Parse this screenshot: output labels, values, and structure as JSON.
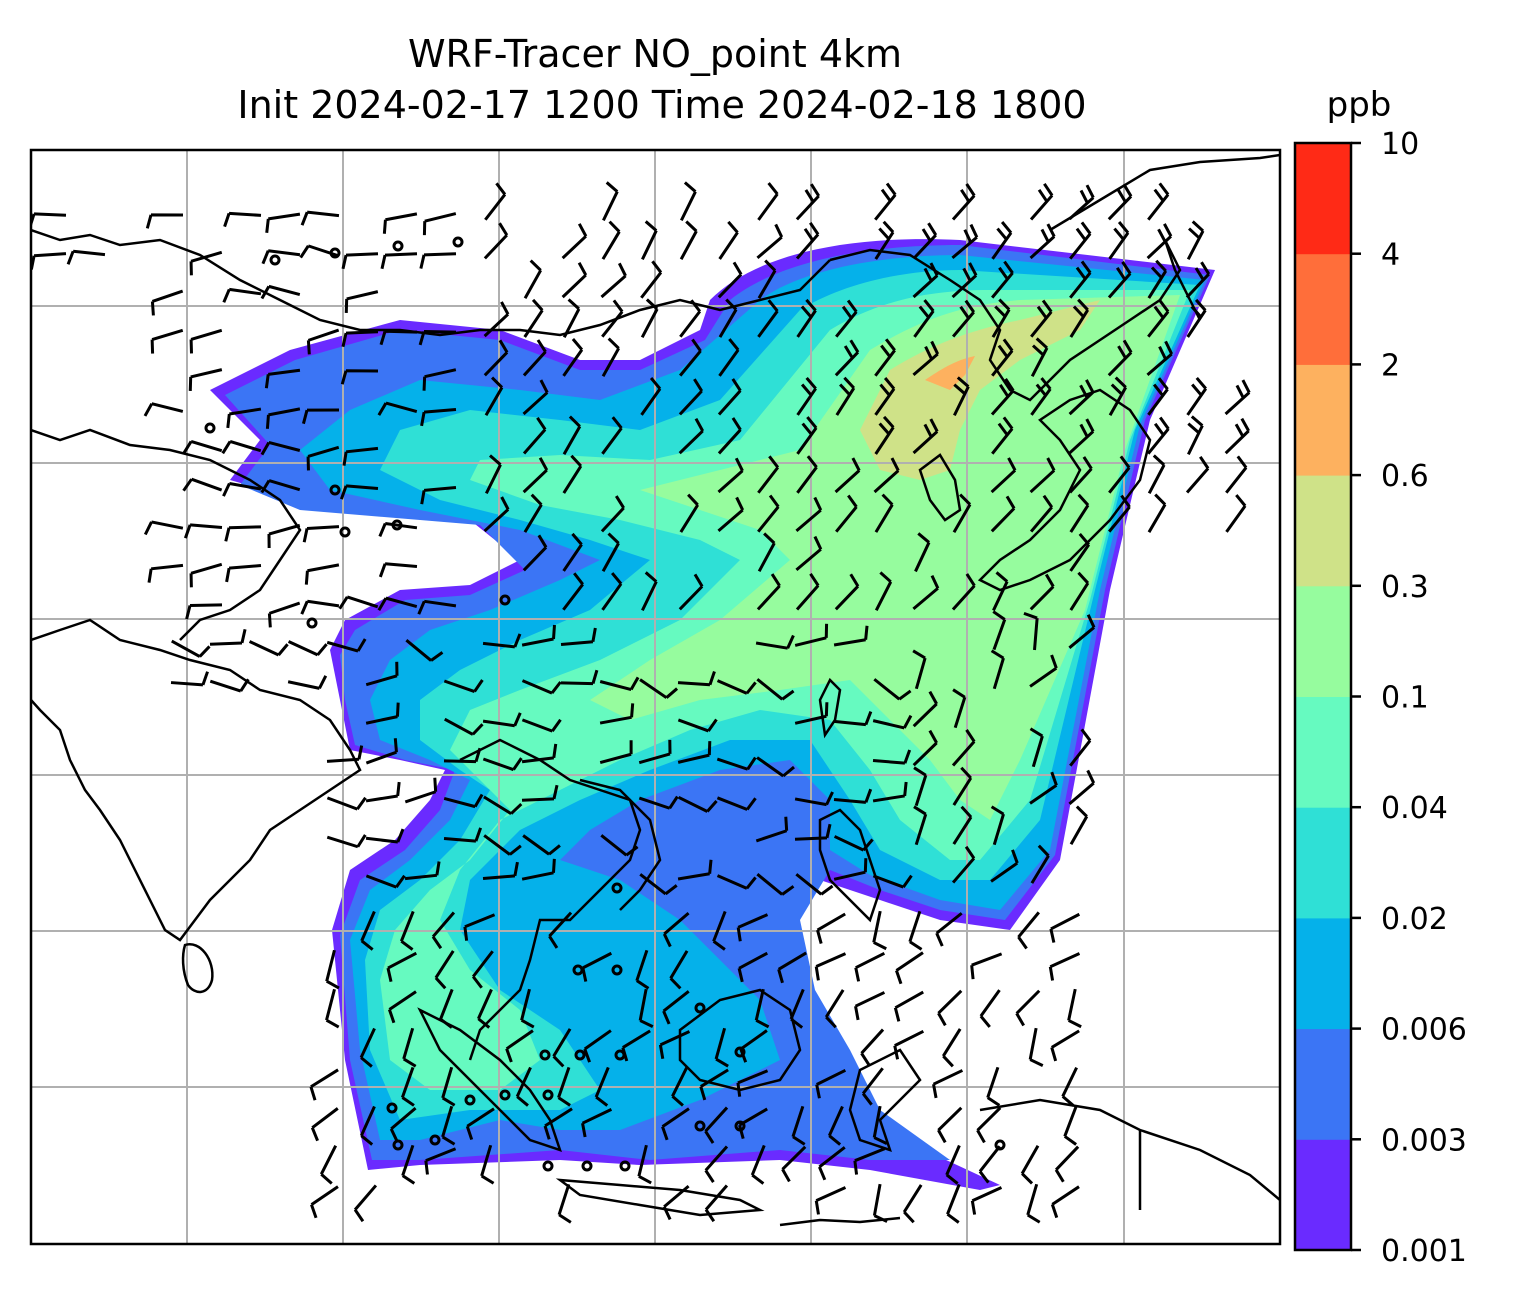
{
  "header": {
    "title_line1": "WRF-Tracer NO_point 4km",
    "title_line2": "Init 2024-02-17 1200 Time 2024-02-18 1800"
  },
  "colorbar": {
    "unit": "ppb",
    "levels": [
      "0.001",
      "0.003",
      "0.006",
      "0.02",
      "0.04",
      "0.1",
      "0.3",
      "0.6",
      "2",
      "4",
      "10"
    ],
    "colors": [
      "#6a2bff",
      "#3b75f5",
      "#05b1ea",
      "#2fe0d6",
      "#66fac0",
      "#96fc9e",
      "#cfe288",
      "#fdb15f",
      "#ff6e3a",
      "#ff2a16"
    ]
  },
  "map": {
    "gridlines": true,
    "coastline_color": "#000000",
    "grid_color": "#b0b0b0",
    "wind_barb_color": "#000000"
  }
}
